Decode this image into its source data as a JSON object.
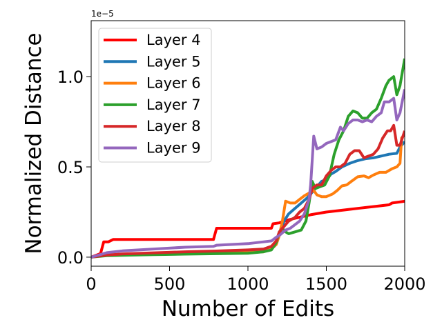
{
  "chart_data": {
    "type": "line",
    "title": "",
    "xlabel": "Number of Edits",
    "ylabel": "Normalized Distance",
    "y_offset_label": "1e−5",
    "y_scale_note": "values in units of 1e-5",
    "xlim": [
      0,
      2000
    ],
    "ylim": [
      -0.05,
      1.31
    ],
    "xticks": [
      0,
      500,
      1000,
      1500,
      2000
    ],
    "xtick_labels": [
      "0",
      "500",
      "1000",
      "1500",
      "2000"
    ],
    "yticks": [
      0.0,
      0.5,
      1.0
    ],
    "ytick_labels": [
      "0.0",
      "0.5",
      "1.0"
    ],
    "grid": false,
    "legend_position": "top-left",
    "series": [
      {
        "name": "Layer 4",
        "color": "#ff0000",
        "points": [
          [
            0,
            0.0
          ],
          [
            60,
            0.02
          ],
          [
            80,
            0.085
          ],
          [
            110,
            0.085
          ],
          [
            140,
            0.098
          ],
          [
            300,
            0.098
          ],
          [
            500,
            0.098
          ],
          [
            780,
            0.098
          ],
          [
            800,
            0.16
          ],
          [
            1000,
            0.16
          ],
          [
            1150,
            0.16
          ],
          [
            1160,
            0.185
          ],
          [
            1200,
            0.19
          ],
          [
            1250,
            0.205
          ],
          [
            1300,
            0.215
          ],
          [
            1400,
            0.235
          ],
          [
            1500,
            0.25
          ],
          [
            1600,
            0.26
          ],
          [
            1700,
            0.27
          ],
          [
            1800,
            0.28
          ],
          [
            1900,
            0.29
          ],
          [
            1920,
            0.3
          ],
          [
            2000,
            0.31
          ]
        ]
      },
      {
        "name": "Layer 5",
        "color": "#1f77b4",
        "points": [
          [
            0,
            0.0
          ],
          [
            100,
            0.012
          ],
          [
            200,
            0.016
          ],
          [
            400,
            0.02
          ],
          [
            600,
            0.024
          ],
          [
            800,
            0.028
          ],
          [
            1000,
            0.03
          ],
          [
            1100,
            0.035
          ],
          [
            1150,
            0.045
          ],
          [
            1180,
            0.07
          ],
          [
            1200,
            0.12
          ],
          [
            1230,
            0.2
          ],
          [
            1260,
            0.24
          ],
          [
            1300,
            0.27
          ],
          [
            1340,
            0.3
          ],
          [
            1380,
            0.33
          ],
          [
            1410,
            0.36
          ],
          [
            1440,
            0.39
          ],
          [
            1470,
            0.42
          ],
          [
            1500,
            0.43
          ],
          [
            1530,
            0.46
          ],
          [
            1560,
            0.475
          ],
          [
            1600,
            0.5
          ],
          [
            1650,
            0.52
          ],
          [
            1700,
            0.535
          ],
          [
            1750,
            0.545
          ],
          [
            1800,
            0.55
          ],
          [
            1850,
            0.56
          ],
          [
            1900,
            0.57
          ],
          [
            1950,
            0.575
          ],
          [
            1970,
            0.61
          ],
          [
            2000,
            0.64
          ]
        ]
      },
      {
        "name": "Layer 6",
        "color": "#ff7f0e",
        "points": [
          [
            0,
            0.0
          ],
          [
            100,
            0.012
          ],
          [
            200,
            0.015
          ],
          [
            400,
            0.018
          ],
          [
            600,
            0.02
          ],
          [
            800,
            0.022
          ],
          [
            1000,
            0.025
          ],
          [
            1100,
            0.03
          ],
          [
            1150,
            0.045
          ],
          [
            1180,
            0.07
          ],
          [
            1200,
            0.12
          ],
          [
            1220,
            0.2
          ],
          [
            1240,
            0.31
          ],
          [
            1270,
            0.3
          ],
          [
            1300,
            0.3
          ],
          [
            1330,
            0.32
          ],
          [
            1360,
            0.34
          ],
          [
            1390,
            0.355
          ],
          [
            1420,
            0.37
          ],
          [
            1440,
            0.345
          ],
          [
            1470,
            0.335
          ],
          [
            1500,
            0.335
          ],
          [
            1540,
            0.35
          ],
          [
            1570,
            0.37
          ],
          [
            1600,
            0.395
          ],
          [
            1630,
            0.4
          ],
          [
            1660,
            0.42
          ],
          [
            1700,
            0.445
          ],
          [
            1740,
            0.45
          ],
          [
            1770,
            0.44
          ],
          [
            1800,
            0.455
          ],
          [
            1840,
            0.47
          ],
          [
            1880,
            0.47
          ],
          [
            1920,
            0.49
          ],
          [
            1950,
            0.5
          ],
          [
            1970,
            0.52
          ],
          [
            1980,
            0.66
          ],
          [
            2000,
            0.68
          ]
        ]
      },
      {
        "name": "Layer 7",
        "color": "#2ca02c",
        "points": [
          [
            0,
            0.0
          ],
          [
            100,
            0.008
          ],
          [
            200,
            0.01
          ],
          [
            400,
            0.014
          ],
          [
            600,
            0.017
          ],
          [
            800,
            0.019
          ],
          [
            1000,
            0.022
          ],
          [
            1100,
            0.03
          ],
          [
            1150,
            0.04
          ],
          [
            1180,
            0.08
          ],
          [
            1200,
            0.14
          ],
          [
            1220,
            0.16
          ],
          [
            1240,
            0.14
          ],
          [
            1260,
            0.13
          ],
          [
            1300,
            0.14
          ],
          [
            1340,
            0.15
          ],
          [
            1370,
            0.2
          ],
          [
            1390,
            0.3
          ],
          [
            1410,
            0.42
          ],
          [
            1430,
            0.38
          ],
          [
            1460,
            0.39
          ],
          [
            1490,
            0.4
          ],
          [
            1520,
            0.45
          ],
          [
            1550,
            0.57
          ],
          [
            1580,
            0.65
          ],
          [
            1610,
            0.7
          ],
          [
            1640,
            0.78
          ],
          [
            1670,
            0.81
          ],
          [
            1700,
            0.8
          ],
          [
            1730,
            0.77
          ],
          [
            1760,
            0.77
          ],
          [
            1790,
            0.8
          ],
          [
            1820,
            0.82
          ],
          [
            1850,
            0.88
          ],
          [
            1880,
            0.95
          ],
          [
            1900,
            0.98
          ],
          [
            1930,
            1.0
          ],
          [
            1950,
            0.9
          ],
          [
            1970,
            0.95
          ],
          [
            2000,
            1.1
          ]
        ]
      },
      {
        "name": "Layer 8",
        "color": "#d62728",
        "points": [
          [
            0,
            0.0
          ],
          [
            100,
            0.012
          ],
          [
            200,
            0.018
          ],
          [
            400,
            0.024
          ],
          [
            600,
            0.03
          ],
          [
            800,
            0.034
          ],
          [
            1000,
            0.04
          ],
          [
            1100,
            0.045
          ],
          [
            1150,
            0.06
          ],
          [
            1180,
            0.09
          ],
          [
            1200,
            0.14
          ],
          [
            1230,
            0.17
          ],
          [
            1260,
            0.2
          ],
          [
            1300,
            0.22
          ],
          [
            1330,
            0.25
          ],
          [
            1360,
            0.27
          ],
          [
            1390,
            0.32
          ],
          [
            1410,
            0.38
          ],
          [
            1440,
            0.4
          ],
          [
            1470,
            0.4
          ],
          [
            1500,
            0.45
          ],
          [
            1530,
            0.48
          ],
          [
            1560,
            0.5
          ],
          [
            1590,
            0.5
          ],
          [
            1620,
            0.52
          ],
          [
            1650,
            0.57
          ],
          [
            1680,
            0.59
          ],
          [
            1710,
            0.59
          ],
          [
            1740,
            0.55
          ],
          [
            1770,
            0.56
          ],
          [
            1800,
            0.57
          ],
          [
            1830,
            0.6
          ],
          [
            1860,
            0.66
          ],
          [
            1890,
            0.7
          ],
          [
            1910,
            0.7
          ],
          [
            1930,
            0.73
          ],
          [
            1950,
            0.62
          ],
          [
            1970,
            0.62
          ],
          [
            2000,
            0.7
          ]
        ]
      },
      {
        "name": "Layer 9",
        "color": "#9467bd",
        "points": [
          [
            0,
            0.0
          ],
          [
            100,
            0.025
          ],
          [
            200,
            0.035
          ],
          [
            400,
            0.045
          ],
          [
            600,
            0.055
          ],
          [
            780,
            0.06
          ],
          [
            800,
            0.066
          ],
          [
            1000,
            0.075
          ],
          [
            1100,
            0.085
          ],
          [
            1150,
            0.09
          ],
          [
            1180,
            0.11
          ],
          [
            1200,
            0.12
          ],
          [
            1240,
            0.15
          ],
          [
            1270,
            0.16
          ],
          [
            1300,
            0.18
          ],
          [
            1330,
            0.2
          ],
          [
            1360,
            0.24
          ],
          [
            1390,
            0.32
          ],
          [
            1400,
            0.4
          ],
          [
            1420,
            0.67
          ],
          [
            1440,
            0.6
          ],
          [
            1470,
            0.61
          ],
          [
            1500,
            0.63
          ],
          [
            1530,
            0.64
          ],
          [
            1560,
            0.65
          ],
          [
            1590,
            0.72
          ],
          [
            1610,
            0.7
          ],
          [
            1640,
            0.74
          ],
          [
            1670,
            0.76
          ],
          [
            1700,
            0.76
          ],
          [
            1730,
            0.75
          ],
          [
            1760,
            0.76
          ],
          [
            1790,
            0.75
          ],
          [
            1820,
            0.78
          ],
          [
            1850,
            0.8
          ],
          [
            1870,
            0.86
          ],
          [
            1900,
            0.86
          ],
          [
            1930,
            0.88
          ],
          [
            1950,
            0.76
          ],
          [
            1970,
            0.8
          ],
          [
            2000,
            0.93
          ]
        ]
      }
    ]
  }
}
